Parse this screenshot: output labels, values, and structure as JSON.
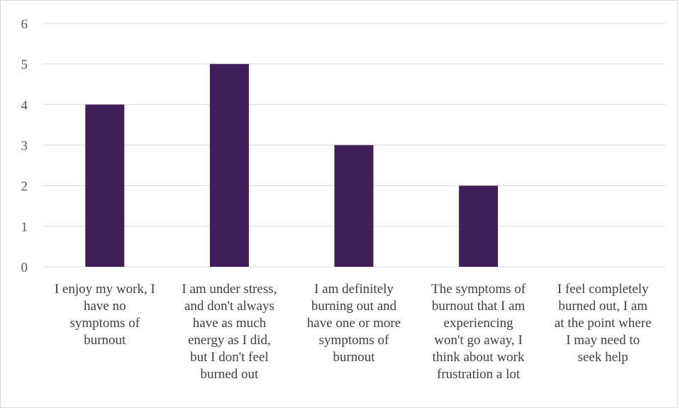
{
  "chart_data": {
    "type": "bar",
    "categories": [
      [
        "I enjoy my work, I",
        "have no",
        "symptoms of",
        "burnout"
      ],
      [
        "I am under stress,",
        "and don't always",
        "have as much",
        "energy as I did,",
        "but I don't feel",
        "burned out"
      ],
      [
        "I am definitely",
        "burning out and",
        "have one or more",
        "symptoms of",
        "burnout"
      ],
      [
        "The symptoms of",
        "burnout that I am",
        "experiencing",
        "won't go away, I",
        "think about work",
        "frustration a lot"
      ],
      [
        "I feel completely",
        "burned out, I am",
        "at the point where",
        "I may need to",
        "seek help"
      ]
    ],
    "values": [
      4,
      5,
      3,
      2,
      0
    ],
    "ylim": [
      0,
      6
    ],
    "yticks": [
      "0",
      "1",
      "2",
      "3",
      "4",
      "5",
      "6"
    ],
    "grid": true,
    "legend": "none",
    "bar_color": "#3f1f5a",
    "grid_color": "#d9d9d9"
  }
}
